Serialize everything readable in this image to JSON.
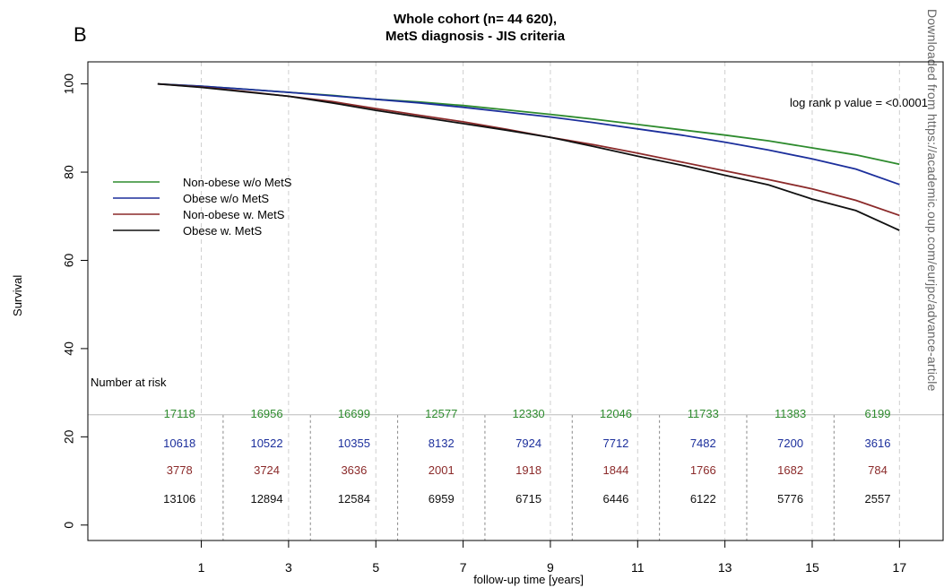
{
  "panel_label": "B",
  "watermark": "Downloaded from https://academic.oup.com/eurjpc/advance-article",
  "chart_data": {
    "type": "line",
    "title": "Whole cohort (n= 44 620),",
    "subtitle": "MetS diagnosis - JIS criteria",
    "xlabel": "follow-up time [years]",
    "ylabel": "Survival",
    "xlim": [
      -1.6,
      18
    ],
    "ylim": [
      -3.5,
      105
    ],
    "x_ticks": [
      1,
      3,
      5,
      7,
      9,
      11,
      13,
      15,
      17
    ],
    "y_ticks": [
      0,
      20,
      40,
      60,
      80,
      100
    ],
    "grid": "vertical dashed",
    "legend_position": "left",
    "annotation": "log rank p value = <0.0001",
    "series": [
      {
        "name": "Non-obese w/o MetS",
        "color": "#2e8b2e",
        "x": [
          0,
          1,
          2,
          3,
          4,
          5,
          6,
          7,
          8,
          9,
          10,
          11,
          12,
          13,
          14,
          15,
          16,
          17
        ],
        "y": [
          100,
          99.5,
          98.8,
          98.1,
          97.4,
          96.5,
          95.9,
          95.1,
          94.1,
          93.1,
          92.0,
          90.8,
          89.6,
          88.4,
          87.1,
          85.5,
          83.9,
          81.8
        ]
      },
      {
        "name": "Obese w/o MetS",
        "color": "#1c2f9c",
        "x": [
          0,
          1,
          2,
          3,
          4,
          5,
          6,
          7,
          8,
          9,
          10,
          11,
          12,
          13,
          14,
          15,
          16,
          17
        ],
        "y": [
          100,
          99.5,
          98.8,
          98.1,
          97.3,
          96.5,
          95.7,
          94.7,
          93.6,
          92.5,
          91.2,
          89.8,
          88.4,
          86.8,
          85.0,
          83.0,
          80.7,
          77.2
        ]
      },
      {
        "name": "Non-obese w. MetS",
        "color": "#8b2a2a",
        "x": [
          0,
          1,
          2,
          3,
          4,
          5,
          6,
          7,
          8,
          9,
          10,
          11,
          12,
          13,
          14,
          15,
          16,
          17
        ],
        "y": [
          100,
          99.3,
          98.3,
          97.2,
          96.0,
          94.4,
          92.9,
          91.4,
          89.7,
          87.9,
          86.2,
          84.3,
          82.3,
          80.3,
          78.3,
          76.2,
          73.6,
          70.2
        ]
      },
      {
        "name": "Obese w. MetS",
        "color": "#111111",
        "x": [
          0,
          1,
          2,
          3,
          4,
          5,
          6,
          7,
          8,
          9,
          10,
          11,
          12,
          13,
          14,
          15,
          16,
          17
        ],
        "y": [
          100,
          99.2,
          98.2,
          97.2,
          95.7,
          94.0,
          92.5,
          91.0,
          89.5,
          87.9,
          85.8,
          83.6,
          81.6,
          79.3,
          77.1,
          73.9,
          71.3,
          66.8
        ]
      }
    ],
    "risk_table": {
      "label": "Number at risk",
      "times": [
        -0.5,
        1.5,
        3.5,
        5.5,
        7.5,
        9.5,
        11.5,
        13.5,
        15.5
      ],
      "rows": [
        {
          "color": "#2e8b2e",
          "values": [
            "17118",
            "16956",
            "16699",
            "12577",
            "12330",
            "12046",
            "11733",
            "11383",
            "6199"
          ]
        },
        {
          "color": "#1c2f9c",
          "values": [
            "10618",
            "10522",
            "10355",
            "8132",
            "7924",
            "7712",
            "7482",
            "7200",
            "3616"
          ]
        },
        {
          "color": "#8b2a2a",
          "values": [
            "3778",
            "3724",
            "3636",
            "2001",
            "1918",
            "1844",
            "1766",
            "1682",
            "784"
          ]
        },
        {
          "color": "#111111",
          "values": [
            "13106",
            "12894",
            "12584",
            "6959",
            "6715",
            "6446",
            "6122",
            "5776",
            "2557"
          ]
        }
      ]
    }
  }
}
